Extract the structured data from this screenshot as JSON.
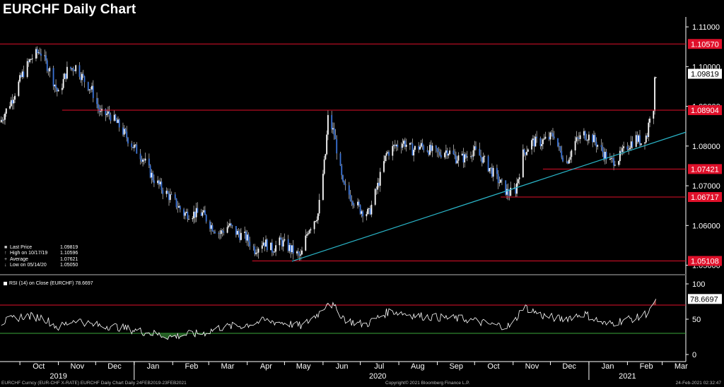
{
  "title": "EURCHF Daily Chart",
  "chart_data": [
    {
      "type": "candlestick",
      "title": "EURCHF Daily Chart",
      "x_range": [
        "2019-09-15",
        "2021-03-20"
      ],
      "ylim": [
        1.0485,
        1.1125
      ],
      "y_ticks": [
        1.05,
        1.06,
        1.07,
        1.08,
        1.09,
        1.1,
        1.11
      ],
      "y_tick_labels": [
        "1.05000",
        "1.06000",
        "1.07000",
        "1.08000",
        "1.09000",
        "1.10000",
        "1.11000"
      ],
      "x_months": [
        {
          "date": "2019-10-01",
          "label": "Oct"
        },
        {
          "date": "2019-11-01",
          "label": "Nov"
        },
        {
          "date": "2019-12-01",
          "label": "Dec"
        },
        {
          "date": "2020-01-01",
          "label": "Jan"
        },
        {
          "date": "2020-02-01",
          "label": "Feb"
        },
        {
          "date": "2020-03-01",
          "label": "Mar"
        },
        {
          "date": "2020-04-01",
          "label": "Apr"
        },
        {
          "date": "2020-05-01",
          "label": "May"
        },
        {
          "date": "2020-06-01",
          "label": "Jun"
        },
        {
          "date": "2020-07-01",
          "label": "Jul"
        },
        {
          "date": "2020-08-01",
          "label": "Aug"
        },
        {
          "date": "2020-09-01",
          "label": "Sep"
        },
        {
          "date": "2020-10-01",
          "label": "Oct"
        },
        {
          "date": "2020-11-01",
          "label": "Nov"
        },
        {
          "date": "2020-12-01",
          "label": "Dec"
        },
        {
          "date": "2021-01-01",
          "label": "Jan"
        },
        {
          "date": "2021-02-01",
          "label": "Feb"
        },
        {
          "date": "2021-03-01",
          "label": "Mar"
        }
      ],
      "x_years": [
        {
          "date": "2019-11-01",
          "label": "2019"
        },
        {
          "date": "2020-07-15",
          "label": "2020"
        },
        {
          "date": "2021-02-01",
          "label": "2021"
        }
      ],
      "price_path": [
        [
          "2019-09-15",
          1.086
        ],
        [
          "2019-09-25",
          1.092
        ],
        [
          "2019-10-03",
          1.098
        ],
        [
          "2019-10-10",
          1.102
        ],
        [
          "2019-10-17",
          1.104
        ],
        [
          "2019-10-25",
          1.099
        ],
        [
          "2019-11-01",
          1.093
        ],
        [
          "2019-11-08",
          1.099
        ],
        [
          "2019-11-15",
          1.1
        ],
        [
          "2019-11-22",
          1.0965
        ],
        [
          "2019-11-28",
          1.094
        ],
        [
          "2019-12-05",
          1.088
        ],
        [
          "2019-12-12",
          1.088
        ],
        [
          "2019-12-20",
          1.085
        ],
        [
          "2019-12-31",
          1.08
        ],
        [
          "2020-01-08",
          1.077
        ],
        [
          "2020-01-16",
          1.072
        ],
        [
          "2020-01-24",
          1.069
        ],
        [
          "2020-02-01",
          1.0665
        ],
        [
          "2020-02-10",
          1.063
        ],
        [
          "2020-02-18",
          1.063
        ],
        [
          "2020-02-25",
          1.063
        ],
        [
          "2020-03-03",
          1.06
        ],
        [
          "2020-03-10",
          1.058
        ],
        [
          "2020-03-17",
          1.06
        ],
        [
          "2020-03-24",
          1.058
        ],
        [
          "2020-03-31",
          1.057
        ],
        [
          "2020-04-07",
          1.054
        ],
        [
          "2020-04-14",
          1.056
        ],
        [
          "2020-04-21",
          1.054
        ],
        [
          "2020-04-28",
          1.056
        ],
        [
          "2020-05-06",
          1.054
        ],
        [
          "2020-05-14",
          1.052
        ],
        [
          "2020-05-20",
          1.059
        ],
        [
          "2020-05-28",
          1.063
        ],
        [
          "2020-06-03",
          1.078
        ],
        [
          "2020-06-05",
          1.087
        ],
        [
          "2020-06-10",
          1.083
        ],
        [
          "2020-06-17",
          1.07
        ],
        [
          "2020-06-24",
          1.067
        ],
        [
          "2020-07-01",
          1.064
        ],
        [
          "2020-07-08",
          1.063
        ],
        [
          "2020-07-15",
          1.07
        ],
        [
          "2020-07-22",
          1.078
        ],
        [
          "2020-07-29",
          1.08
        ],
        [
          "2020-08-05",
          1.081
        ],
        [
          "2020-08-12",
          1.079
        ],
        [
          "2020-08-19",
          1.08
        ],
        [
          "2020-08-26",
          1.079
        ],
        [
          "2020-09-02",
          1.078
        ],
        [
          "2020-09-09",
          1.079
        ],
        [
          "2020-09-16",
          1.077
        ],
        [
          "2020-09-23",
          1.077
        ],
        [
          "2020-09-30",
          1.079
        ],
        [
          "2020-10-07",
          1.077
        ],
        [
          "2020-10-14",
          1.074
        ],
        [
          "2020-10-21",
          1.071
        ],
        [
          "2020-10-28",
          1.068
        ],
        [
          "2020-11-03",
          1.069
        ],
        [
          "2020-11-09",
          1.078
        ],
        [
          "2020-11-16",
          1.081
        ],
        [
          "2020-11-23",
          1.081
        ],
        [
          "2020-11-30",
          1.082
        ],
        [
          "2020-12-04",
          1.083
        ],
        [
          "2020-12-08",
          1.079
        ],
        [
          "2020-12-14",
          1.076
        ],
        [
          "2020-12-21",
          1.081
        ],
        [
          "2020-12-28",
          1.083
        ],
        [
          "2021-01-04",
          1.082
        ],
        [
          "2021-01-11",
          1.079
        ],
        [
          "2021-01-18",
          1.076
        ],
        [
          "2021-01-25",
          1.077
        ],
        [
          "2021-02-01",
          1.08
        ],
        [
          "2021-02-08",
          1.082
        ],
        [
          "2021-02-12",
          1.081
        ],
        [
          "2021-02-17",
          1.083
        ],
        [
          "2021-02-19",
          1.088
        ],
        [
          "2021-02-22",
          1.09
        ],
        [
          "2021-02-23",
          1.096
        ],
        [
          "2021-02-24",
          1.0982
        ]
      ],
      "horizontal_lines": [
        {
          "value": 1.1057,
          "label": "1.10570",
          "color": "#e0102a",
          "from": "2019-09-15",
          "to": "2021-03-20"
        },
        {
          "value": 1.08904,
          "label": "1.08904",
          "color": "#e0102a",
          "from": "2019-11-04",
          "to": "2021-03-20"
        },
        {
          "value": 1.07421,
          "label": "1.07421",
          "color": "#e0102a",
          "from": "2020-11-25",
          "to": "2021-03-20"
        },
        {
          "value": 1.06717,
          "label": "1.06717",
          "color": "#e0102a",
          "from": "2020-10-22",
          "to": "2021-03-20"
        },
        {
          "value": 1.05108,
          "label": "1.05108",
          "color": "#e0102a",
          "from": "2020-04-05",
          "to": "2021-03-20"
        }
      ],
      "trendline": {
        "from": [
          "2020-05-07",
          1.051
        ],
        "to": [
          "2021-03-20",
          1.0835
        ],
        "color": "#2ab5c8"
      },
      "last_price": {
        "value": 1.09819,
        "label": "1.09819"
      },
      "legend": [
        {
          "label": "Last Price",
          "value": "1.09819"
        },
        {
          "label": "High on 10/17/19",
          "value": "1.10596"
        },
        {
          "label": "Average",
          "value": "1.07621"
        },
        {
          "label": "Low on 05/14/20",
          "value": "1.05050"
        }
      ],
      "colors": {
        "up": "#ffffff",
        "down": "#3b73d6",
        "level": "#e0102a",
        "trend": "#2ab5c8"
      }
    },
    {
      "type": "line",
      "title": "RSI (14)  on Close (EURCHF)",
      "series": [
        {
          "name": "RSI (14)  on Close (EURCHF)",
          "last": "78.6697"
        }
      ],
      "ylim": [
        -10,
        110
      ],
      "y_ticks": [
        0,
        50,
        100
      ],
      "y_tick_labels": [
        "0",
        "50",
        "100"
      ],
      "levels": [
        {
          "value": 70,
          "color": "#e0102a"
        },
        {
          "value": 30,
          "color": "#3aa83a"
        }
      ],
      "last_value": {
        "value": 78.6697,
        "label": "78.6697"
      },
      "rsi_path": [
        [
          "2019-09-15",
          45
        ],
        [
          "2019-10-05",
          55
        ],
        [
          "2019-10-20",
          52
        ],
        [
          "2019-11-01",
          38
        ],
        [
          "2019-11-15",
          50
        ],
        [
          "2019-11-28",
          42
        ],
        [
          "2019-12-15",
          40
        ],
        [
          "2019-12-31",
          35
        ],
        [
          "2020-01-15",
          30
        ],
        [
          "2020-01-31",
          25
        ],
        [
          "2020-02-10",
          28
        ],
        [
          "2020-02-25",
          30
        ],
        [
          "2020-03-10",
          38
        ],
        [
          "2020-03-31",
          42
        ],
        [
          "2020-04-15",
          48
        ],
        [
          "2020-04-30",
          45
        ],
        [
          "2020-05-15",
          40
        ],
        [
          "2020-05-31",
          62
        ],
        [
          "2020-06-05",
          76
        ],
        [
          "2020-06-20",
          48
        ],
        [
          "2020-07-05",
          42
        ],
        [
          "2020-07-25",
          62
        ],
        [
          "2020-08-15",
          55
        ],
        [
          "2020-09-05",
          52
        ],
        [
          "2020-09-25",
          50
        ],
        [
          "2020-10-15",
          42
        ],
        [
          "2020-10-31",
          40
        ],
        [
          "2020-11-09",
          68
        ],
        [
          "2020-11-25",
          55
        ],
        [
          "2020-12-10",
          50
        ],
        [
          "2020-12-28",
          58
        ],
        [
          "2021-01-15",
          42
        ],
        [
          "2021-01-31",
          50
        ],
        [
          "2021-02-10",
          52
        ],
        [
          "2021-02-18",
          60
        ],
        [
          "2021-02-24",
          78.67
        ]
      ]
    }
  ],
  "footer": {
    "left": "EURCHF Curncy (EUR-CHF X-RATE) EURCHF Daily Chart  Daily 24FEB2019-23FEB2021",
    "center": "Copyright© 2021 Bloomberg Finance L.P.",
    "right": "24-Feb-2021 02:32:47"
  }
}
